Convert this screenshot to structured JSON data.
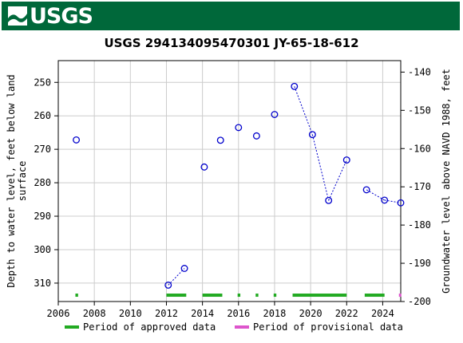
{
  "header": {
    "logo_text": "USGS",
    "brand_color": "#00683a"
  },
  "chart_data": {
    "type": "scatter",
    "title": "USGS 294134095470301 JY-65-18-612",
    "xlabel": "",
    "ylabel_left": "Depth to water level, feet below land surface",
    "ylabel_left_lines": [
      "Depth to water level, feet below land",
      "surface"
    ],
    "ylabel_right": "Groundwater level above NAVD 1988, feet",
    "xlim": [
      2006,
      2025
    ],
    "ylim_left": [
      315.5,
      243.5
    ],
    "ylim_right": [
      -200,
      -137
    ],
    "x_ticks": [
      2006,
      2008,
      2010,
      2012,
      2014,
      2016,
      2018,
      2020,
      2022,
      2024
    ],
    "y_left_ticks": [
      250,
      260,
      270,
      280,
      290,
      300,
      310
    ],
    "y_right_ticks": [
      -140,
      -150,
      -160,
      -170,
      -180,
      -190,
      -200
    ],
    "grid": true,
    "series": [
      {
        "marker": "open-circle",
        "color": "#0000cc",
        "points": [
          {
            "x": 2007.0,
            "y": 267.2
          },
          {
            "x": 2012.1,
            "y": 310.6
          },
          {
            "x": 2013.0,
            "y": 305.6
          },
          {
            "x": 2014.1,
            "y": 275.3
          },
          {
            "x": 2015.0,
            "y": 267.3
          },
          {
            "x": 2016.0,
            "y": 263.5
          },
          {
            "x": 2017.0,
            "y": 266.0
          },
          {
            "x": 2018.0,
            "y": 259.6
          },
          {
            "x": 2019.1,
            "y": 251.2
          },
          {
            "x": 2020.1,
            "y": 265.6
          },
          {
            "x": 2021.0,
            "y": 285.3
          },
          {
            "x": 2022.0,
            "y": 273.2
          },
          {
            "x": 2023.1,
            "y": 282.1
          },
          {
            "x": 2024.1,
            "y": 285.2
          },
          {
            "x": 2025.0,
            "y": 286.0
          }
        ],
        "connected_segments": [
          [
            1,
            2
          ],
          [
            9,
            10
          ],
          [
            10,
            11
          ],
          [
            12,
            13
          ],
          [
            13,
            14
          ]
        ],
        "dotted_segments": [
          [
            8,
            9
          ]
        ]
      }
    ],
    "approval_periods": {
      "approved": [
        [
          2006.95,
          2007.1
        ],
        [
          2012.0,
          2013.1
        ],
        [
          2014.0,
          2015.1
        ],
        [
          2015.95,
          2016.1
        ],
        [
          2016.95,
          2017.1
        ],
        [
          2017.95,
          2018.1
        ],
        [
          2019.0,
          2022.0
        ],
        [
          2023.0,
          2024.1
        ]
      ],
      "provisional": [
        [
          2024.9,
          2025.0
        ]
      ]
    },
    "legend": {
      "placement": "bottom",
      "items": [
        {
          "label": "Period of approved data",
          "color": "#22aa22"
        },
        {
          "label": "Period of provisional data",
          "color": "#dd55cc"
        }
      ]
    }
  }
}
